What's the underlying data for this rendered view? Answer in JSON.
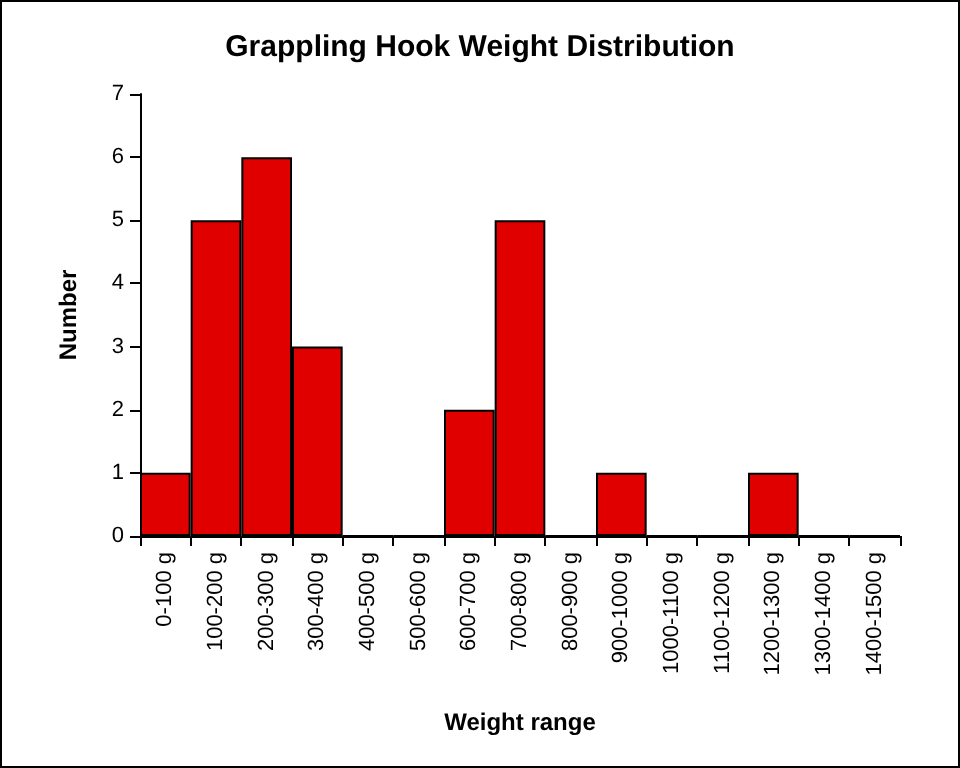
{
  "chart_data": {
    "type": "bar",
    "title": "Grappling Hook Weight Distribution",
    "xlabel": "Weight range",
    "ylabel": "Number",
    "categories": [
      "0-100 g",
      "100-200 g",
      "200-300 g",
      "300-400 g",
      "400-500 g",
      "500-600 g",
      "600-700 g",
      "700-800 g",
      "800-900 g",
      "900-1000 g",
      "1000-1100 g",
      "1100-1200 g",
      "1200-1300 g",
      "1300-1400 g",
      "1400-1500 g"
    ],
    "values": [
      1,
      5,
      6,
      3,
      0,
      0,
      2,
      5,
      0,
      1,
      0,
      0,
      1,
      0,
      0
    ],
    "color": "#e00000",
    "ylim": [
      0,
      7
    ],
    "yticks": [
      0,
      1,
      2,
      3,
      4,
      5,
      6,
      7
    ]
  }
}
